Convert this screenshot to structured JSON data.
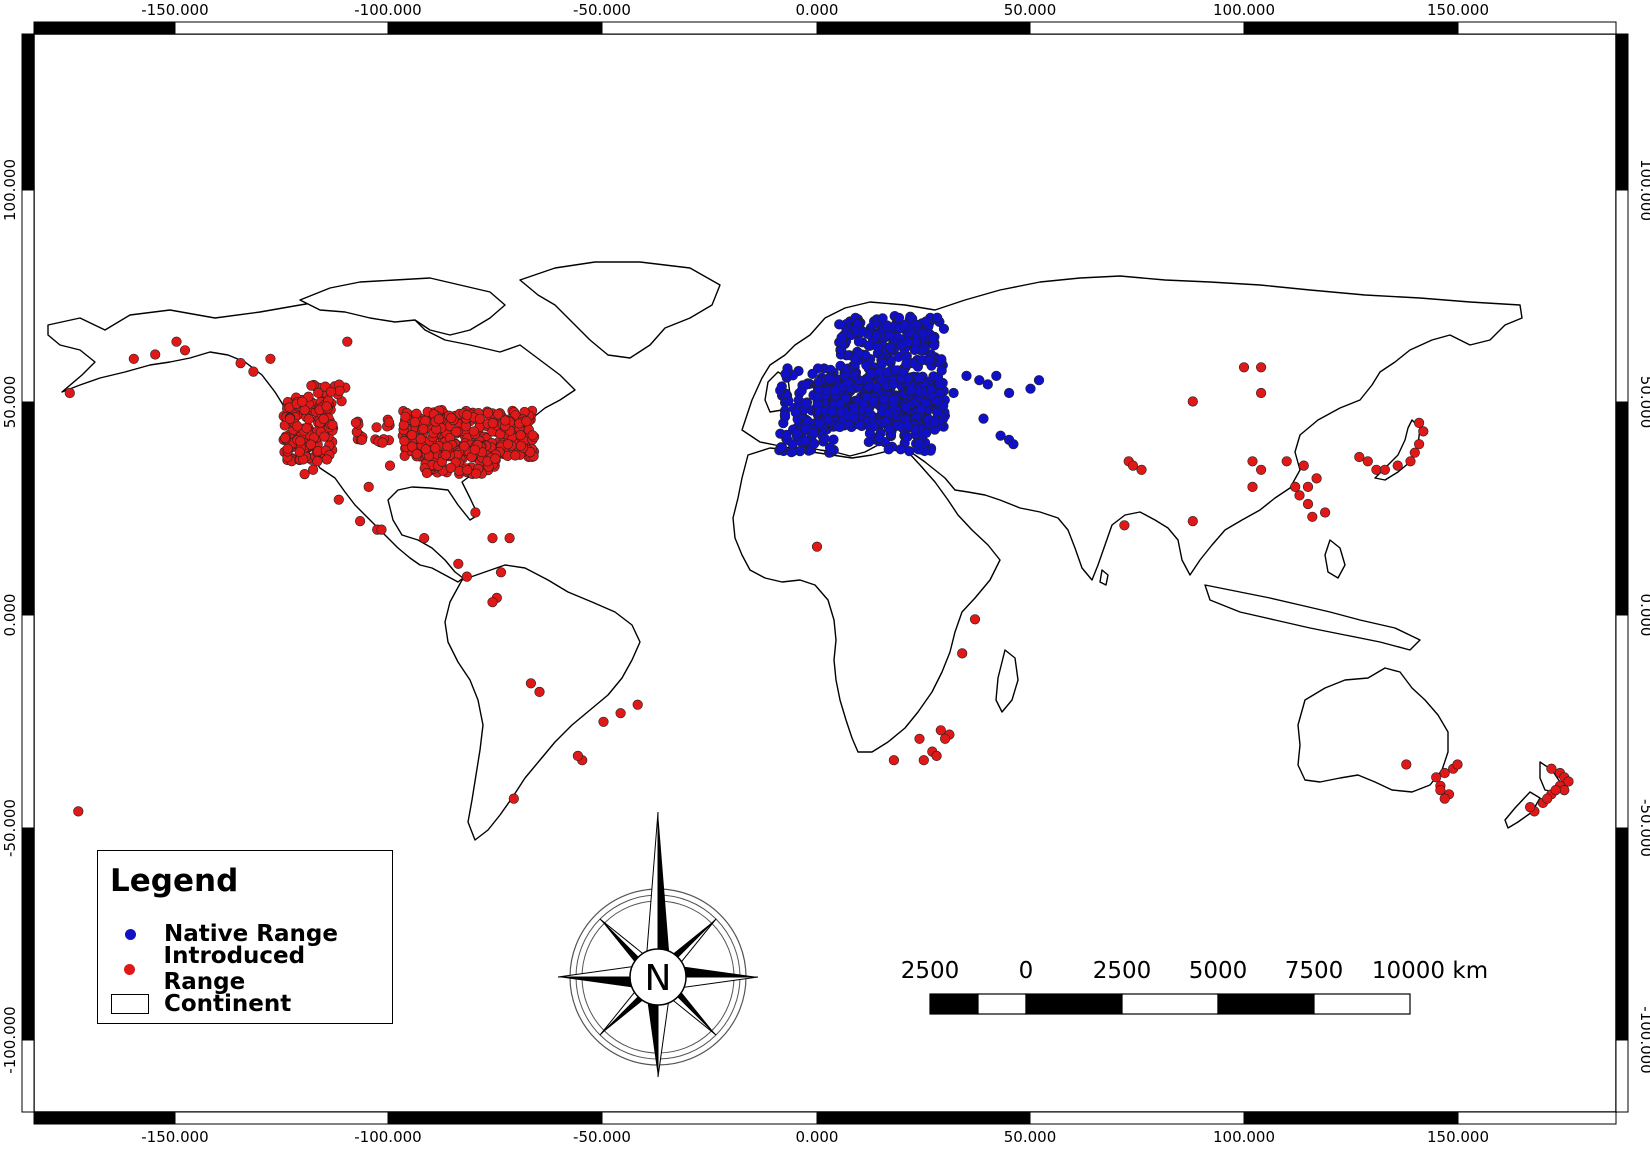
{
  "map": {
    "x_ticks": [
      "-150.000",
      "-100.000",
      "-50.000",
      "0.000",
      "50.000",
      "100.000",
      "150.000"
    ],
    "y_ticks": [
      "100.000",
      "50.000",
      "0.000",
      "-50.000",
      "-100.000"
    ]
  },
  "legend": {
    "title": "Legend",
    "items": [
      {
        "label": "Native Range",
        "color": "#1010c8",
        "symbol": "dot"
      },
      {
        "label": "Introduced Range",
        "color": "#e01818",
        "symbol": "dot"
      },
      {
        "label": "Continent",
        "color": "#ffffff",
        "symbol": "rect"
      }
    ]
  },
  "north_arrow": {
    "label": "N"
  },
  "scale_bar": {
    "labels": [
      "2500",
      "0",
      "2500",
      "5000",
      "7500",
      "10000 km"
    ]
  },
  "colors": {
    "native": "#1010c8",
    "introduced": "#e01818",
    "outline": "#000000"
  }
}
